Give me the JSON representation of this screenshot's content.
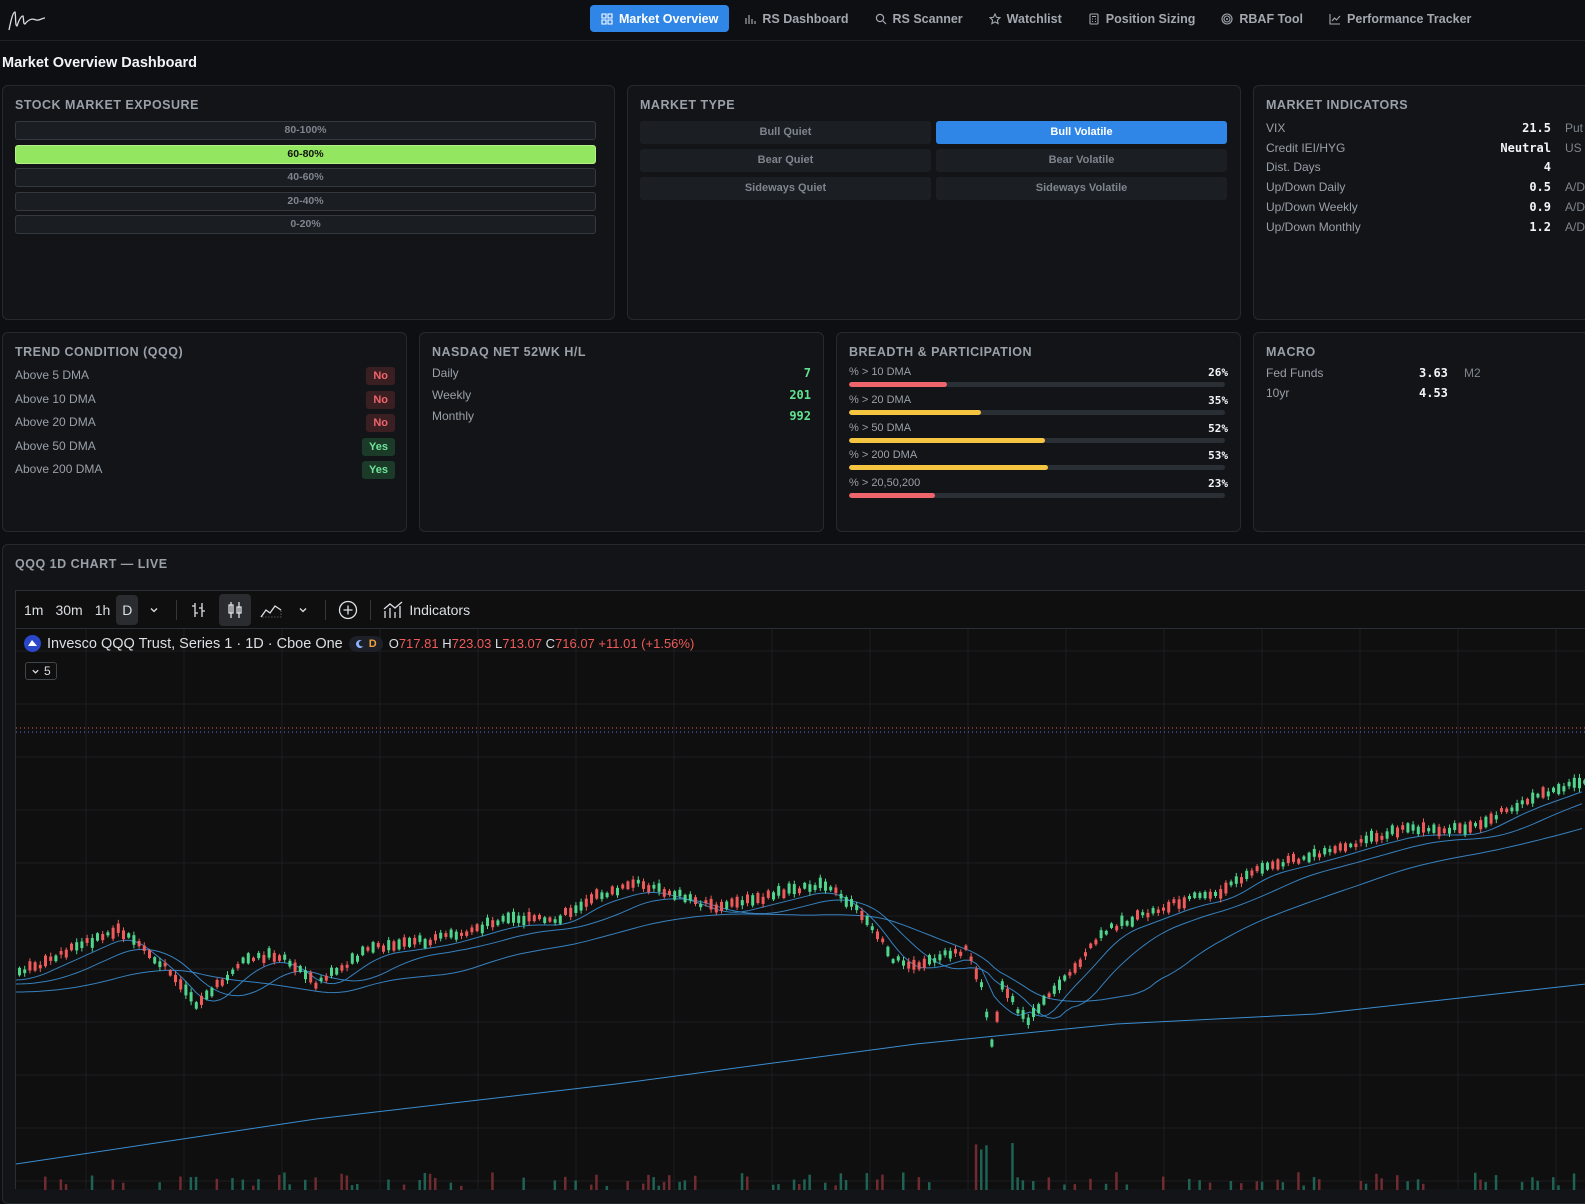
{
  "nav": {
    "items": [
      {
        "label": "Market Overview",
        "icon": "grid-icon",
        "active": true
      },
      {
        "label": "RS Dashboard",
        "icon": "bar-chart-icon",
        "active": false
      },
      {
        "label": "RS Scanner",
        "icon": "search-icon",
        "active": false
      },
      {
        "label": "Watchlist",
        "icon": "star-icon",
        "active": false
      },
      {
        "label": "Position Sizing",
        "icon": "calculator-icon",
        "active": false
      },
      {
        "label": "RBAF Tool",
        "icon": "target-icon",
        "active": false
      },
      {
        "label": "Performance Tracker",
        "icon": "line-chart-icon",
        "active": false
      }
    ]
  },
  "page_title": "Market Overview Dashboard",
  "exposure": {
    "title": "Stock Market Exposure",
    "levels": [
      "80-100%",
      "60-80%",
      "40-60%",
      "20-40%",
      "0-20%"
    ],
    "active_index": 1
  },
  "market_type": {
    "title": "Market Type",
    "options": [
      "Bull Quiet",
      "Bull Volatile",
      "Bear Quiet",
      "Bear Volatile",
      "Sideways Quiet",
      "Sideways Volatile"
    ],
    "active_index": 1
  },
  "indicators": {
    "title": "Market Indicators",
    "rows": [
      {
        "label": "VIX",
        "value": "21.5",
        "extra": "Put"
      },
      {
        "label": "Credit IEI/HYG",
        "value": "Neutral",
        "extra": "US"
      },
      {
        "label": "Dist. Days",
        "value": "4",
        "extra": ""
      },
      {
        "label": "Up/Down Daily",
        "value": "0.5",
        "extra": "A/D"
      },
      {
        "label": "Up/Down Weekly",
        "value": "0.9",
        "extra": "A/D"
      },
      {
        "label": "Up/Down Monthly",
        "value": "1.2",
        "extra": "A/D"
      }
    ]
  },
  "trend": {
    "title": "Trend Condition (QQQ)",
    "rows": [
      {
        "label": "Above 5 DMA",
        "value": "No"
      },
      {
        "label": "Above 10 DMA",
        "value": "No"
      },
      {
        "label": "Above 20 DMA",
        "value": "No"
      },
      {
        "label": "Above 50 DMA",
        "value": "Yes"
      },
      {
        "label": "Above 200 DMA",
        "value": "Yes"
      }
    ]
  },
  "nasdaq": {
    "title": "Nasdaq Net 52wk H/L",
    "rows": [
      {
        "label": "Daily",
        "value": "7"
      },
      {
        "label": "Weekly",
        "value": "201"
      },
      {
        "label": "Monthly",
        "value": "992"
      }
    ]
  },
  "breadth": {
    "title": "Breadth & Participation",
    "rows": [
      {
        "label": "% > 10 DMA",
        "value": "26%",
        "pct": 26,
        "color": "#f0646b"
      },
      {
        "label": "% > 20 DMA",
        "value": "35%",
        "pct": 35,
        "color": "#f5c542"
      },
      {
        "label": "% > 50 DMA",
        "value": "52%",
        "pct": 52,
        "color": "#f5c542"
      },
      {
        "label": "% > 200 DMA",
        "value": "53%",
        "pct": 53,
        "color": "#f5c542"
      },
      {
        "label": "% > 20,50,200",
        "value": "23%",
        "pct": 23,
        "color": "#f0646b"
      }
    ]
  },
  "macro": {
    "title": "Macro",
    "rows": [
      {
        "label": "Fed Funds",
        "value": "3.63",
        "extra": "M2"
      },
      {
        "label": "10yr",
        "value": "4.53",
        "extra": ""
      }
    ]
  },
  "chart_section": {
    "title": "QQQ 1D Chart — Live",
    "toolbar": {
      "intervals": [
        "1m",
        "30m",
        "1h",
        "D"
      ],
      "selected_interval": "D",
      "indicators_label": "Indicators"
    },
    "legend": {
      "symbol_name": "Invesco QQQ Trust, Series 1 · 1D · Cboe One",
      "session_badge": "D",
      "open_label": "O",
      "open": "717.81",
      "high_label": "H",
      "high": "723.03",
      "low_label": "L",
      "low": "713.07",
      "close_label": "C",
      "close": "716.07",
      "change": "+11.01 (+1.56%)",
      "collapse_count": "5"
    },
    "colors": {
      "up": "#4fd68c",
      "down": "#ef5a5a",
      "ma": "#3b8ed1",
      "grid": "#1c1e22"
    }
  }
}
